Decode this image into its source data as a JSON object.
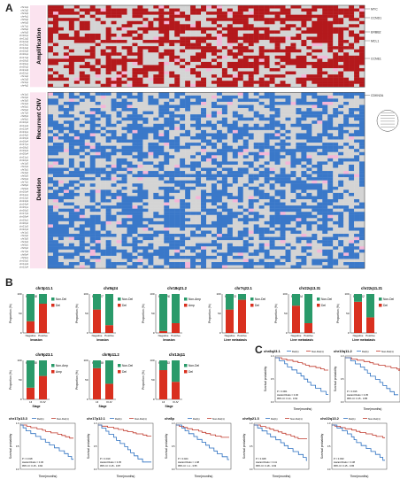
{
  "panels": {
    "a": "A",
    "b": "B",
    "c": "C"
  },
  "heatmap": {
    "groups": [
      "Amplification",
      "Recurrent CNV",
      "Deletion"
    ],
    "row_label_prefix": "chr",
    "right_labels_amp": [
      "MYC",
      "CCND1",
      "ERBB2",
      "MCL1",
      "CCNE1"
    ],
    "right_labels_del": [
      "CDKN2A"
    ],
    "colors": {
      "amp": "#b4191c",
      "del": "#3a78c9",
      "none": "#d4d4d4",
      "pink": "#f4b6d8"
    }
  },
  "bar_charts": [
    {
      "title": "chr3p11.1",
      "p": "P=0.008",
      "legend": [
        "Non-Del",
        "Del"
      ],
      "xcats": [
        "Negative",
        "Positive"
      ],
      "xlabel": "Invasion",
      "ylabel": "Proportion (%)"
    },
    {
      "title": "chr8q24",
      "p": "P=0.017",
      "legend": [
        "Non-Del",
        "Del"
      ],
      "xcats": [
        "Negative",
        "Positive"
      ],
      "xlabel": "Invasion",
      "ylabel": "Proportion (%)"
    },
    {
      "title": "chr18q21.2",
      "p": "P=0.026",
      "legend": [
        "Non-Amp",
        "Amp"
      ],
      "xcats": [
        "Negative",
        "Positive"
      ],
      "xlabel": "Invasion",
      "ylabel": "Proportion (%)"
    },
    {
      "title": "chr7q22.1",
      "p": "P=0.013",
      "legend": [
        "Non-Del",
        "Del"
      ],
      "xcats": [
        "Negative",
        "Positive"
      ],
      "xlabel": "Liver metastasis",
      "ylabel": "Proportion (%)"
    },
    {
      "title": "chr22q13.31",
      "p": "P=0.004",
      "legend": [
        "Non-Del",
        "Del"
      ],
      "xcats": [
        "Negative",
        "Positive"
      ],
      "xlabel": "Liver metastasis",
      "ylabel": "Proportion (%)"
    },
    {
      "title": "chr22q11.21",
      "p": "P=0.002",
      "legend": [
        "Non-Del",
        "Del"
      ],
      "xcats": [
        "Negative",
        "Positive"
      ],
      "xlabel": "Liver metastasis",
      "ylabel": "Proportion (%)"
    },
    {
      "title": "chr9p23.1",
      "p": "P=0.030",
      "legend": [
        "Non-Amp",
        "Amp"
      ],
      "xcats": [
        "I-II",
        "III-IV"
      ],
      "xlabel": "Stage",
      "ylabel": "Proportion (%)"
    },
    {
      "title": "chr9p11.2",
      "p": "P=0.039",
      "legend": [
        "Non-Del",
        "Del"
      ],
      "xcats": [
        "I-II",
        "III-IV"
      ],
      "xlabel": "Stage",
      "ylabel": "Proportion (%)"
    },
    {
      "title": "chr13q11",
      "p": "P=0.043",
      "legend": [
        "Non-Del",
        "Del"
      ],
      "xcats": [
        "I-II",
        "III-IV"
      ],
      "xlabel": "Stage",
      "ylabel": "Proportion (%)"
    }
  ],
  "bar_values": [
    [
      [
        70,
        30
      ],
      [
        25,
        75
      ]
    ],
    [
      [
        40,
        60
      ],
      [
        80,
        20
      ]
    ],
    [
      [
        95,
        5
      ],
      [
        75,
        25
      ]
    ],
    [
      [
        40,
        60
      ],
      [
        15,
        85
      ]
    ],
    [
      [
        30,
        70
      ],
      [
        75,
        25
      ]
    ],
    [
      [
        20,
        80
      ],
      [
        60,
        40
      ]
    ],
    [
      [
        70,
        30
      ],
      [
        40,
        60
      ]
    ],
    [
      [
        20,
        80
      ],
      [
        60,
        40
      ]
    ],
    [
      [
        25,
        75
      ],
      [
        55,
        45
      ]
    ]
  ],
  "survival": [
    {
      "title": "chr8q23.1",
      "legend": [
        "Del(1)",
        "Non-Del(1)"
      ],
      "stats": [
        "P = 0.001",
        "Hazard Ratio = 0.30",
        "95% CI: 0.14 - 0.63"
      ],
      "ylabel": "Survival probability",
      "xlabel": "Time(months)"
    },
    {
      "title": "chr10q11.2",
      "legend": [
        "Del(1)",
        "Non-Del(1)"
      ],
      "stats": [
        "P = 0.016",
        "Hazard Ratio = 0.35",
        "95% CI: 0.15 - 0.85"
      ],
      "ylabel": "Survival probability",
      "xlabel": "Time(months)"
    },
    {
      "title": "chr17p13.3",
      "legend": [
        "Del(1)",
        "Non-Del(1)"
      ],
      "stats": [
        "P = 0.018",
        "Hazard Ratio = 0.36",
        "95% CI: 0.15 - 0.84"
      ],
      "ylabel": "Survival probability",
      "xlabel": "Time(months)"
    },
    {
      "title": "chr17p12.1",
      "legend": [
        "Del(1)",
        "Non-Del(1)"
      ],
      "stats": [
        "P = 0.019",
        "Hazard Ratio = 0.35",
        "95% CI: 0.15 - 0.87"
      ],
      "ylabel": "Survival probability",
      "xlabel": "Time(months)"
    },
    {
      "title": "chr8p",
      "legend": [
        "Del(1)",
        "Non-Del(1)"
      ],
      "stats": [
        "P = 0.024",
        "Hazard Ratio = 1.98",
        "95% CI: 1.1 - 3.55"
      ],
      "ylabel": "Survival probability",
      "xlabel": "Time(months)"
    },
    {
      "title": "chr9p21.3",
      "legend": [
        "Del(1)",
        "Non-Del(1)"
      ],
      "stats": [
        "P = 0.028",
        "Hazard Ratio = 0.41",
        "95% CI: 0.18 - 0.93"
      ],
      "ylabel": "Survival probability",
      "xlabel": "Time(months)"
    },
    {
      "title": "chr22q13.2",
      "legend": [
        "Del(1)",
        "Non-Del(1)"
      ],
      "stats": [
        "P = 0.033",
        "Hazard Ratio = 0.38",
        "95% CI: 0.15 - 0.95"
      ],
      "ylabel": "Survival probability",
      "xlabel": "Time(months)"
    }
  ]
}
